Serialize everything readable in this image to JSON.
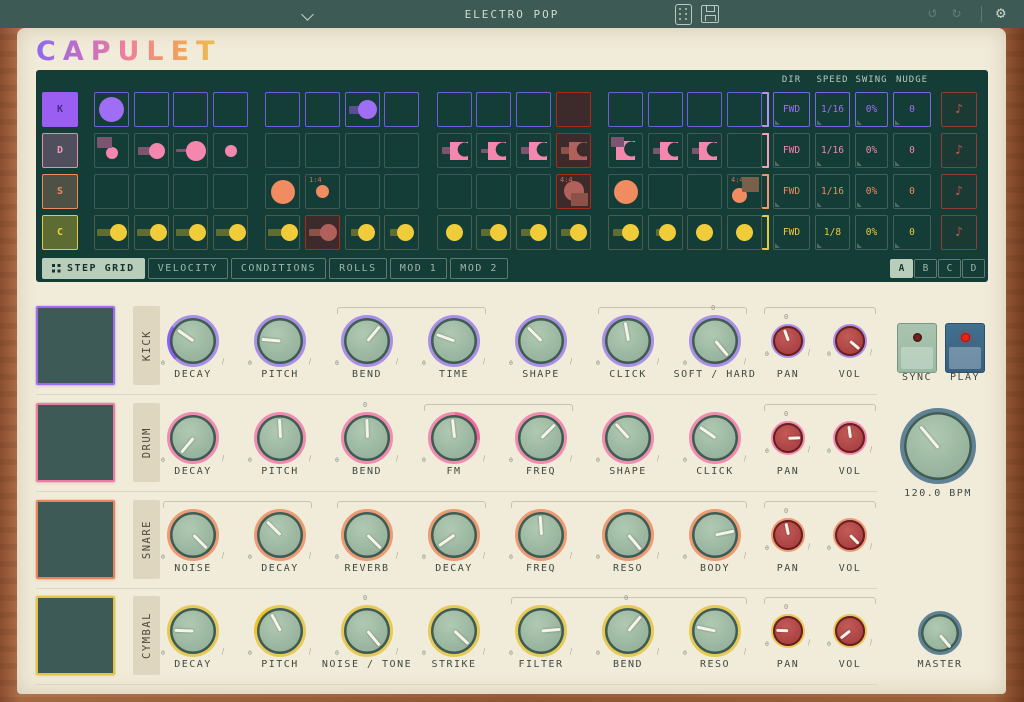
{
  "topbar": {
    "title": "ELECTRO POP"
  },
  "logo": "CAPULET",
  "sequencer": {
    "param_headers": [
      "DIR",
      "SPEED",
      "SWING",
      "NUDGE"
    ],
    "tabs": [
      {
        "label": "STEP GRID",
        "active": true
      },
      {
        "label": "VELOCITY",
        "active": false
      },
      {
        "label": "CONDITIONS",
        "active": false
      },
      {
        "label": "ROLLS",
        "active": false
      },
      {
        "label": "MOD 1",
        "active": false
      },
      {
        "label": "MOD 2",
        "active": false
      }
    ],
    "patterns": [
      {
        "label": "A",
        "active": true
      },
      {
        "label": "B",
        "active": false
      },
      {
        "label": "C",
        "active": false
      },
      {
        "label": "D",
        "active": false
      }
    ],
    "playhead_color": "#ac2a1c",
    "playhead_fill": "#3d2a2b",
    "play_content_color": "#b2605c",
    "play_tail_color": "#8c5248",
    "rows": [
      {
        "id": "kick",
        "key": "K",
        "color": "#a06df5",
        "label_bg": "#9a5ef2",
        "label_fg": "#47297f",
        "label_border": "#9a5ef2",
        "cell_border": "#6f60d8",
        "tail_color": "#5a4f92",
        "bracket": "#b293f5",
        "params": {
          "dir": "FWD",
          "speed": "1/16",
          "swing": "0%",
          "nudge": "0"
        },
        "param_border": "#7a68e0",
        "steps": [
          {
            "shape": "circle",
            "size": 25
          },
          null,
          null,
          null,
          null,
          null,
          {
            "shape": "circle",
            "size": 19,
            "tail": {
              "w": 11,
              "h": 8
            }
          },
          null,
          null,
          null,
          null,
          {
            "play": true
          },
          null,
          null,
          null,
          null
        ]
      },
      {
        "id": "drum",
        "key": "D",
        "color": "#f587ae",
        "label_bg": "#4f4f5e",
        "label_fg": "#f19ab8",
        "label_border": "#e98cab",
        "cell_border": "#3e5b54",
        "tail_color": "#7c5671",
        "bracket": "#f5a0b8",
        "params": {
          "dir": "FWD",
          "speed": "1/16",
          "swing": "0%",
          "nudge": "0"
        },
        "param_border": "#41605a",
        "steps": [
          {
            "shape": "circle",
            "size": 12,
            "rect": {
              "pos": "tl",
              "w": 15,
              "h": 11
            }
          },
          {
            "shape": "circle",
            "size": 16,
            "tail": {
              "w": 13,
              "h": 8
            }
          },
          {
            "shape": "circle",
            "size": 20,
            "tail": {
              "w": 12,
              "h": 3
            }
          },
          {
            "shape": "circle",
            "size": 12
          },
          null,
          null,
          null,
          null,
          {
            "shape": "crescent",
            "size": 18,
            "tail": {
              "w": 10,
              "h": 7
            }
          },
          {
            "shape": "crescent",
            "size": 18,
            "tail": {
              "w": 9,
              "h": 4
            }
          },
          {
            "shape": "crescent",
            "size": 18,
            "tail": {
              "w": 10,
              "h": 7
            }
          },
          {
            "shape": "crescent",
            "size": 18,
            "tail": {
              "w": 10,
              "h": 7
            },
            "play": true
          },
          {
            "shape": "crescent",
            "size": 19,
            "rect": {
              "pos": "tl",
              "w": 13,
              "h": 10
            }
          },
          {
            "shape": "crescent",
            "size": 18,
            "tail": {
              "w": 9,
              "h": 6
            }
          },
          {
            "shape": "crescent",
            "size": 18,
            "tail": {
              "w": 9,
              "h": 6
            }
          },
          null
        ]
      },
      {
        "id": "snare",
        "key": "S",
        "color": "#f08c60",
        "label_bg": "#4e5244",
        "label_fg": "#ef8a63",
        "label_border": "#ef8a63",
        "cell_border": "#3e5b54",
        "tail_color": "#7b6049",
        "bracket": "#f0976d",
        "params": {
          "dir": "FWD",
          "speed": "1/16",
          "swing": "0%",
          "nudge": "0"
        },
        "param_border": "#41605a",
        "steps": [
          null,
          null,
          null,
          null,
          {
            "shape": "circle",
            "size": 24
          },
          {
            "shape": "circle",
            "size": 13,
            "tag": "1:4"
          },
          null,
          null,
          null,
          null,
          null,
          {
            "shape": "circle",
            "size": 20,
            "rect": {
              "pos": "br",
              "w": 17,
              "h": 13
            },
            "tag": "4:4",
            "play": true
          },
          {
            "shape": "circle",
            "size": 24
          },
          null,
          null,
          {
            "shape": "circle",
            "size": 15,
            "rect": {
              "pos": "tr",
              "w": 17,
              "h": 15
            },
            "tag": "4:4"
          }
        ]
      },
      {
        "id": "cymbal",
        "key": "C",
        "color": "#f0cb3a",
        "label_bg": "#5c6c33",
        "label_fg": "#eed23e",
        "label_border": "#e6c93c",
        "cell_border": "#4a5c4a",
        "tail_color": "#5f6d33",
        "bracket": "#e8c83c",
        "params": {
          "dir": "FWD",
          "speed": "1/8",
          "swing": "0%",
          "nudge": "0"
        },
        "param_border": "#41605a",
        "steps": [
          {
            "shape": "circle",
            "size": 17,
            "tail": {
              "w": 15,
              "h": 7
            }
          },
          {
            "shape": "circle",
            "size": 17,
            "tail": {
              "w": 15,
              "h": 7
            }
          },
          {
            "shape": "circle",
            "size": 17,
            "tail": {
              "w": 15,
              "h": 7
            }
          },
          {
            "shape": "circle",
            "size": 17,
            "tail": {
              "w": 15,
              "h": 7
            }
          },
          {
            "shape": "circle",
            "size": 17,
            "tail": {
              "w": 15,
              "h": 7
            }
          },
          {
            "shape": "circle",
            "size": 17,
            "tail": {
              "w": 13,
              "h": 7
            },
            "play": true
          },
          {
            "shape": "circle",
            "size": 17,
            "tail": {
              "w": 9,
              "h": 7
            }
          },
          {
            "shape": "circle",
            "size": 17,
            "tail": {
              "w": 9,
              "h": 7
            }
          },
          {
            "shape": "circle",
            "size": 17
          },
          {
            "shape": "circle",
            "size": 17,
            "tail": {
              "w": 11,
              "h": 7
            }
          },
          {
            "shape": "circle",
            "size": 17,
            "tail": {
              "w": 11,
              "h": 7
            }
          },
          {
            "shape": "circle",
            "size": 17,
            "tail": {
              "w": 11,
              "h": 7
            }
          },
          {
            "shape": "circle",
            "size": 17,
            "tail": {
              "w": 11,
              "h": 7
            }
          },
          {
            "shape": "circle",
            "size": 17,
            "tail": {
              "w": 5,
              "h": 7
            }
          },
          {
            "shape": "circle",
            "size": 17
          },
          {
            "shape": "circle",
            "size": 17
          }
        ]
      }
    ]
  },
  "mixer": {
    "sync": "SYNC",
    "play": "PLAY",
    "bpm": "120.0 BPM",
    "master": "MASTER",
    "rows": [
      {
        "name": "KICK",
        "ring": "#a98fe8",
        "pad_border": "#9d6cf2",
        "arc_color": "#8e5ff0",
        "brackets": [
          [
            2,
            3
          ],
          [
            5,
            6
          ],
          [
            7,
            8
          ]
        ],
        "knobs": [
          {
            "label": "DECAY",
            "angle": -55,
            "arc": [
              -135,
              -55
            ]
          },
          {
            "label": "PITCH",
            "angle": -85
          },
          {
            "label": "BEND",
            "angle": 40
          },
          {
            "label": "TIME",
            "angle": -70
          },
          {
            "label": "SHAPE",
            "angle": -45
          },
          {
            "label": "CLICK",
            "angle": -10
          },
          {
            "label": "SOFT / HARD",
            "angle": 140,
            "zero": true
          },
          {
            "label": "PAN",
            "angle": -20,
            "small": true,
            "zero": true
          },
          {
            "label": "VOL",
            "angle": 130,
            "small": true
          }
        ]
      },
      {
        "name": "DRUM",
        "ring": "#f18bb0",
        "pad_border": "#ee7ba2",
        "arc_color": "#f2679c",
        "brackets": [
          [
            3,
            4
          ],
          [
            7,
            8
          ]
        ],
        "knobs": [
          {
            "label": "DECAY",
            "angle": -140
          },
          {
            "label": "PITCH",
            "angle": -3
          },
          {
            "label": "BEND",
            "angle": -2,
            "zero": true
          },
          {
            "label": "FM",
            "angle": -6,
            "arc": [
              2,
              95
            ]
          },
          {
            "label": "FREQ",
            "angle": 45
          },
          {
            "label": "SHAPE",
            "angle": -42
          },
          {
            "label": "CLICK",
            "angle": -55
          },
          {
            "label": "PAN",
            "angle": 88,
            "small": true,
            "zero": true
          },
          {
            "label": "VOL",
            "angle": -8,
            "small": true
          }
        ]
      },
      {
        "name": "SNARE",
        "ring": "#ee9a72",
        "pad_border": "#e8845c",
        "arc_color": "#ee7a48",
        "brackets": [
          [
            0,
            1
          ],
          [
            2,
            3
          ],
          [
            4,
            6
          ],
          [
            7,
            8
          ]
        ],
        "knobs": [
          {
            "label": "NOISE",
            "angle": 135
          },
          {
            "label": "DECAY",
            "angle": -45
          },
          {
            "label": "REVERB",
            "angle": 135
          },
          {
            "label": "DECAY",
            "angle": -125
          },
          {
            "label": "FREQ",
            "angle": -4
          },
          {
            "label": "RESO",
            "angle": 140
          },
          {
            "label": "BODY",
            "angle": 78
          },
          {
            "label": "PAN",
            "angle": -12,
            "small": true,
            "zero": true
          },
          {
            "label": "VOL",
            "angle": 135,
            "small": true
          }
        ]
      },
      {
        "name": "CYMBAL",
        "ring": "#e7ca55",
        "pad_border": "#e4c440",
        "arc_color": "#efc226",
        "brackets": [
          [
            4,
            6
          ],
          [
            7,
            8
          ]
        ],
        "knobs": [
          {
            "label": "DECAY",
            "angle": -88
          },
          {
            "label": "PITCH",
            "angle": -28,
            "arc": [
              -95,
              -28
            ]
          },
          {
            "label": "NOISE / TONE",
            "angle": 140,
            "zero": true
          },
          {
            "label": "STRIKE",
            "angle": 133
          },
          {
            "label": "FILTER",
            "angle": 85
          },
          {
            "label": "BEND",
            "angle": 40,
            "zero": true
          },
          {
            "label": "RESO",
            "angle": -78
          },
          {
            "label": "PAN",
            "angle": -88,
            "small": true,
            "zero": true
          },
          {
            "label": "VOL",
            "angle": -128,
            "small": true
          }
        ]
      }
    ]
  }
}
